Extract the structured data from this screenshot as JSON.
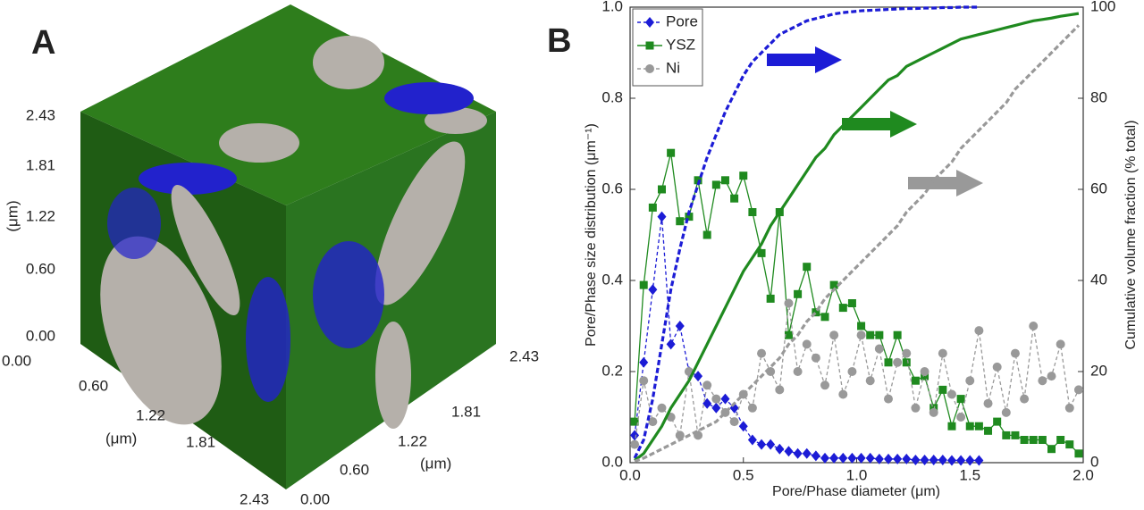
{
  "panel_a": {
    "label": "A",
    "vertical_axis": {
      "ticks": [
        "2.43",
        "1.81",
        "1.22",
        "0.60",
        "0.00"
      ],
      "unit": "(μm)"
    },
    "left_axis": {
      "ticks": [
        "0.00",
        "0.60",
        "1.22",
        "1.81",
        "2.43"
      ],
      "unit": "(μm)"
    },
    "right_axis": {
      "ticks": [
        "0.00",
        "0.60",
        "1.22",
        "1.81",
        "2.43"
      ],
      "unit": "(μm)"
    }
  },
  "chart_data": {
    "type": "line",
    "label": "B",
    "x_label": "Pore/Phase diameter (μm)",
    "y_label": "Pore/Phase size distribution (μm⁻¹)",
    "y2_label": "Cumulative volume fraction (% total)",
    "xlim": [
      0,
      2
    ],
    "ylim": [
      0,
      1
    ],
    "y2lim": [
      0,
      100
    ],
    "xticks": [
      {
        "value": 0,
        "label": "0.0"
      },
      0.5,
      {
        "value": 1,
        "label": "1.0"
      },
      1.5,
      {
        "value": 2,
        "label": "2.0"
      }
    ],
    "yticks": [
      {
        "value": 0,
        "label": "0.0"
      },
      0.2,
      0.4,
      0.6,
      0.8,
      {
        "value": 1,
        "label": "1.0"
      }
    ],
    "y2ticks": [
      0,
      20,
      40,
      60,
      80,
      100
    ],
    "series": [
      {
        "name": "Pore",
        "color": "#1c1cd6",
        "marker": "diamond",
        "dashed": true,
        "x": [
          0.02,
          0.06,
          0.1,
          0.14,
          0.18,
          0.22,
          0.26,
          0.3,
          0.34,
          0.38,
          0.42,
          0.46,
          0.5,
          0.54,
          0.58,
          0.62,
          0.66,
          0.7,
          0.74,
          0.78,
          0.82,
          0.86,
          0.9,
          0.94,
          0.98,
          1.02,
          1.06,
          1.1,
          1.14,
          1.18,
          1.22,
          1.26,
          1.3,
          1.34,
          1.38,
          1.42,
          1.46,
          1.5,
          1.54
        ],
        "values": [
          0.06,
          0.22,
          0.38,
          0.54,
          0.26,
          0.3,
          0.2,
          0.19,
          0.13,
          0.12,
          0.14,
          0.12,
          0.08,
          0.05,
          0.04,
          0.04,
          0.03,
          0.025,
          0.02,
          0.02,
          0.015,
          0.01,
          0.01,
          0.01,
          0.01,
          0.01,
          0.01,
          0.008,
          0.008,
          0.008,
          0.008,
          0.006,
          0.006,
          0.006,
          0.006,
          0.005,
          0.005,
          0.005,
          0.005
        ]
      },
      {
        "name": "YSZ",
        "color": "#1f8a1f",
        "marker": "square",
        "dashed": false,
        "x": [
          0.02,
          0.06,
          0.1,
          0.14,
          0.18,
          0.22,
          0.26,
          0.3,
          0.34,
          0.38,
          0.42,
          0.46,
          0.5,
          0.54,
          0.58,
          0.62,
          0.66,
          0.7,
          0.74,
          0.78,
          0.82,
          0.86,
          0.9,
          0.94,
          0.98,
          1.02,
          1.06,
          1.1,
          1.14,
          1.18,
          1.22,
          1.26,
          1.3,
          1.34,
          1.38,
          1.42,
          1.46,
          1.5,
          1.54,
          1.58,
          1.62,
          1.66,
          1.7,
          1.74,
          1.78,
          1.82,
          1.86,
          1.9,
          1.94,
          1.98
        ],
        "values": [
          0.09,
          0.39,
          0.56,
          0.6,
          0.68,
          0.53,
          0.54,
          0.62,
          0.5,
          0.61,
          0.62,
          0.58,
          0.63,
          0.55,
          0.46,
          0.36,
          0.55,
          0.28,
          0.37,
          0.43,
          0.33,
          0.32,
          0.39,
          0.34,
          0.35,
          0.3,
          0.28,
          0.28,
          0.22,
          0.28,
          0.22,
          0.18,
          0.19,
          0.12,
          0.16,
          0.08,
          0.14,
          0.08,
          0.08,
          0.07,
          0.09,
          0.06,
          0.06,
          0.05,
          0.05,
          0.05,
          0.03,
          0.05,
          0.04,
          0.02
        ]
      },
      {
        "name": "Ni",
        "color": "#999999",
        "marker": "circle",
        "dashed": true,
        "x": [
          0.02,
          0.06,
          0.1,
          0.14,
          0.18,
          0.22,
          0.26,
          0.3,
          0.34,
          0.38,
          0.42,
          0.46,
          0.5,
          0.54,
          0.58,
          0.62,
          0.66,
          0.7,
          0.74,
          0.78,
          0.82,
          0.86,
          0.9,
          0.94,
          0.98,
          1.02,
          1.06,
          1.1,
          1.14,
          1.18,
          1.22,
          1.26,
          1.3,
          1.34,
          1.38,
          1.42,
          1.46,
          1.5,
          1.54,
          1.58,
          1.62,
          1.66,
          1.7,
          1.74,
          1.78,
          1.82,
          1.86,
          1.9,
          1.94,
          1.98
        ],
        "values": [
          0.04,
          0.18,
          0.09,
          0.12,
          0.1,
          0.06,
          0.2,
          0.06,
          0.17,
          0.14,
          0.11,
          0.09,
          0.15,
          0.12,
          0.24,
          0.2,
          0.16,
          0.35,
          0.2,
          0.26,
          0.23,
          0.17,
          0.28,
          0.15,
          0.2,
          0.28,
          0.18,
          0.25,
          0.14,
          0.22,
          0.24,
          0.12,
          0.2,
          0.11,
          0.24,
          0.15,
          0.1,
          0.18,
          0.29,
          0.13,
          0.21,
          0.11,
          0.24,
          0.14,
          0.3,
          0.18,
          0.19,
          0.26,
          0.12,
          0.16
        ]
      },
      {
        "color": "#1c1cd6",
        "dashed": true,
        "axis": "y2",
        "x": [
          0.02,
          0.06,
          0.1,
          0.14,
          0.18,
          0.22,
          0.26,
          0.3,
          0.34,
          0.38,
          0.42,
          0.46,
          0.5,
          0.54,
          0.58,
          0.62,
          0.66,
          0.7,
          0.74,
          0.78,
          0.82,
          0.86,
          0.9,
          0.94,
          0.98,
          1.02,
          1.06,
          1.1,
          1.14,
          1.18,
          1.22,
          1.26,
          1.3,
          1.34,
          1.38,
          1.42,
          1.46,
          1.5,
          1.54
        ],
        "values": [
          1,
          5,
          14,
          26,
          38,
          47,
          55,
          61,
          67,
          72,
          77,
          81,
          85,
          88,
          90,
          92,
          94,
          95,
          96,
          97,
          97.5,
          98,
          98.5,
          98.8,
          99,
          99.2,
          99.3,
          99.4,
          99.5,
          99.6,
          99.7,
          99.7,
          99.8,
          99.8,
          99.9,
          99.9,
          100,
          100,
          100
        ]
      },
      {
        "color": "#1f8a1f",
        "dashed": false,
        "axis": "y2",
        "x": [
          0.02,
          0.06,
          0.1,
          0.14,
          0.18,
          0.22,
          0.26,
          0.3,
          0.34,
          0.38,
          0.42,
          0.46,
          0.5,
          0.54,
          0.58,
          0.62,
          0.66,
          0.7,
          0.74,
          0.78,
          0.82,
          0.86,
          0.9,
          0.94,
          0.98,
          1.02,
          1.06,
          1.1,
          1.14,
          1.18,
          1.22,
          1.26,
          1.3,
          1.34,
          1.38,
          1.42,
          1.46,
          1.5,
          1.54,
          1.58,
          1.62,
          1.66,
          1.7,
          1.74,
          1.78,
          1.82,
          1.86,
          1.9,
          1.94,
          1.98
        ],
        "values": [
          0.5,
          2,
          5,
          8,
          12,
          15,
          18,
          22,
          26,
          30,
          34,
          38,
          42,
          45,
          48,
          52,
          55,
          58,
          61,
          64,
          67,
          69,
          72,
          74,
          76,
          78,
          80,
          82,
          84,
          85,
          87,
          88,
          89,
          90,
          91,
          92,
          93,
          93.5,
          94,
          94.5,
          95,
          95.5,
          96,
          96.5,
          97,
          97.3,
          97.6,
          98,
          98.3,
          98.6
        ]
      },
      {
        "color": "#999999",
        "dashed": true,
        "axis": "y2",
        "x": [
          0.02,
          0.06,
          0.1,
          0.14,
          0.18,
          0.22,
          0.26,
          0.3,
          0.34,
          0.38,
          0.42,
          0.46,
          0.5,
          0.54,
          0.58,
          0.62,
          0.66,
          0.7,
          0.74,
          0.78,
          0.82,
          0.86,
          0.9,
          0.94,
          0.98,
          1.02,
          1.06,
          1.1,
          1.14,
          1.18,
          1.22,
          1.26,
          1.3,
          1.34,
          1.38,
          1.42,
          1.46,
          1.5,
          1.54,
          1.58,
          1.62,
          1.66,
          1.7,
          1.74,
          1.78,
          1.82,
          1.86,
          1.9,
          1.94,
          1.98
        ],
        "values": [
          0.3,
          1,
          2,
          3,
          4,
          5,
          6,
          7,
          8,
          9,
          11,
          13,
          15,
          17,
          19,
          21,
          23,
          26,
          28,
          31,
          33,
          36,
          38,
          40,
          42,
          44,
          46,
          48,
          50,
          52,
          55,
          57,
          59,
          62,
          64,
          66,
          69,
          71,
          73,
          75,
          77,
          79,
          82,
          84,
          86,
          88,
          90,
          92,
          94,
          96
        ]
      }
    ]
  }
}
